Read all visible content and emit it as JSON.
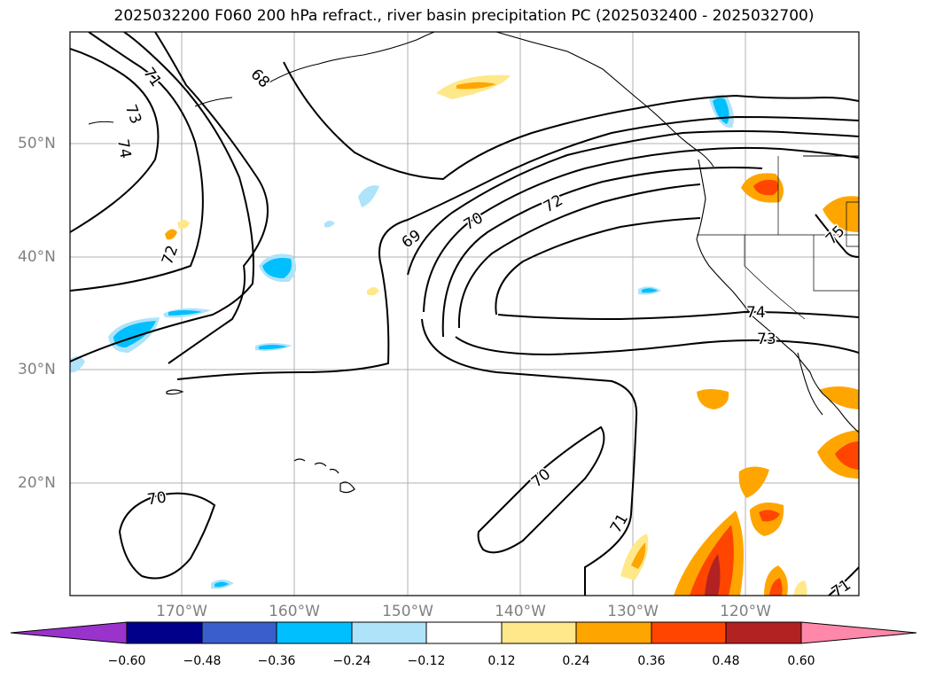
{
  "title": "2025032200 F060 200 hPa refract., river basin precipitation PC (2025032400 - 2025032700)",
  "map": {
    "lat_ticks": [
      "50°N",
      "40°N",
      "30°N",
      "20°N"
    ],
    "lon_ticks": [
      "170°W",
      "160°W",
      "150°W",
      "140°W",
      "130°W",
      "120°W"
    ],
    "contour_labels": [
      "71",
      "73",
      "74",
      "68",
      "72",
      "69",
      "70",
      "72",
      "74",
      "73",
      "70",
      "71",
      "70",
      "71",
      "75"
    ]
  },
  "colorbar": {
    "ticks": [
      "−0.60",
      "−0.48",
      "−0.36",
      "−0.24",
      "−0.12",
      "0.12",
      "0.24",
      "0.36",
      "0.48",
      "0.60"
    ],
    "colors": [
      "#9933cc",
      "#00008b",
      "#3a5fcd",
      "#00bfff",
      "#aee3fa",
      "#ffffff",
      "#ffe88a",
      "#ffa500",
      "#ff4500",
      "#b22222",
      "#ff88aa"
    ]
  }
}
